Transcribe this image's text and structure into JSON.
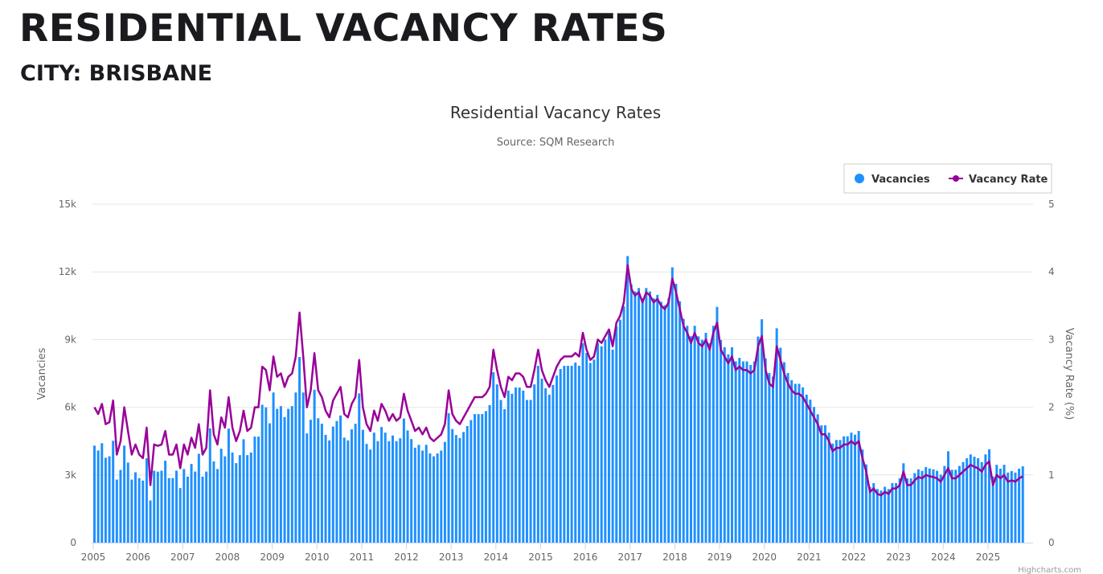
{
  "page": {
    "title": "RESIDENTIAL VACANCY RATES",
    "subtitle": "CITY: BRISBANE"
  },
  "credits": "Highcharts.com",
  "chart_data": {
    "type": "bar+line",
    "title": "Residential Vacancy Rates",
    "subtitle": "Source: SQM Research",
    "x_start": "2005-01",
    "x_interval": "monthly",
    "x_ticks": [
      "2005",
      "2006",
      "2007",
      "2008",
      "2009",
      "2010",
      "2011",
      "2012",
      "2013",
      "2014",
      "2015",
      "2016",
      "2017",
      "2018",
      "2019",
      "2020",
      "2021",
      "2022",
      "2023",
      "2024",
      "2025"
    ],
    "y_left": {
      "label": "Vacancies",
      "range": [
        0,
        15000
      ],
      "ticks": [
        "0",
        "3k",
        "6k",
        "9k",
        "12k",
        "15k"
      ]
    },
    "y_right": {
      "label": "Vacancy Rate (%)",
      "range": [
        0,
        5
      ],
      "ticks": [
        "0",
        "1",
        "2",
        "3",
        "4",
        "5"
      ]
    },
    "grid": true,
    "legend_position": "top-right",
    "colors": {
      "vacancies": "#1e90ff",
      "vacancy_rate": "#990099"
    },
    "series": [
      {
        "name": "Vacancies",
        "type": "column",
        "axis": "left",
        "values": [
          4300,
          4085,
          4408,
          3763,
          3827,
          4515,
          2795,
          3225,
          4300,
          3548,
          2795,
          3118,
          2860,
          2750,
          3740,
          1870,
          3190,
          3146,
          3190,
          3630,
          2860,
          2860,
          3190,
          2420,
          3263,
          2925,
          3488,
          3150,
          3938,
          2925,
          3150,
          5063,
          3600,
          3263,
          4163,
          3825,
          5053,
          3995,
          3525,
          3878,
          4583,
          3878,
          3995,
          4700,
          4700,
          6110,
          5993,
          5288,
          6655,
          5929,
          6050,
          5566,
          5929,
          6050,
          6655,
          8228,
          6655,
          4840,
          5445,
          6776,
          5513,
          5268,
          4778,
          4533,
          5145,
          5390,
          5635,
          4655,
          4533,
          5023,
          5268,
          6615,
          5000,
          4375,
          4125,
          4875,
          4500,
          5125,
          4875,
          4500,
          4750,
          4500,
          4625,
          5500,
          4973,
          4590,
          4208,
          4335,
          4080,
          4335,
          3953,
          3825,
          3953,
          4080,
          4463,
          5738,
          5035,
          4770,
          4638,
          4903,
          5168,
          5433,
          5698,
          5698,
          5698,
          5830,
          6095,
          7553,
          7013,
          6325,
          5913,
          6738,
          6600,
          6875,
          6875,
          6738,
          6325,
          6325,
          7013,
          7838,
          7268,
          6840,
          6555,
          6983,
          7410,
          7695,
          7838,
          7838,
          7838,
          7980,
          7838,
          8835,
          8408,
          7965,
          8113,
          8850,
          8703,
          8998,
          9293,
          8555,
          9588,
          9883,
          10473,
          12700,
          11438,
          11133,
          11285,
          10828,
          11285,
          11133,
          10828,
          10980,
          10675,
          10523,
          10828,
          12200,
          11470,
          10695,
          9920,
          9610,
          9145,
          9610,
          9145,
          8990,
          9300,
          8835,
          9610,
          10450,
          8978,
          8663,
          8348,
          8663,
          8033,
          8190,
          8033,
          8033,
          7875,
          8033,
          9135,
          9900,
          8160,
          7520,
          7360,
          9500,
          8640,
          8000,
          7520,
          7200,
          7040,
          7040,
          6880,
          6560,
          6338,
          6013,
          5688,
          5200,
          5200,
          4875,
          4388,
          4550,
          4550,
          4713,
          4713,
          4875,
          4785,
          4950,
          4125,
          3465,
          2475,
          2640,
          2376,
          2310,
          2475,
          2376,
          2640,
          2640,
          2848,
          3518,
          2848,
          2848,
          3082,
          3250,
          3183,
          3350,
          3283,
          3250,
          3183,
          3015,
          3400,
          4050,
          3230,
          3230,
          3400,
          3570,
          3740,
          3910,
          3808,
          3740,
          3570,
          3910,
          4140,
          2933,
          3450,
          3278,
          3450,
          3105,
          3174,
          3105,
          3278,
          3381
        ]
      },
      {
        "name": "Vacancy Rate",
        "type": "line",
        "axis": "right",
        "values": [
          2.0,
          1.9,
          2.05,
          1.75,
          1.78,
          2.1,
          1.3,
          1.5,
          2.0,
          1.65,
          1.3,
          1.45,
          1.3,
          1.25,
          1.7,
          0.85,
          1.45,
          1.43,
          1.45,
          1.65,
          1.3,
          1.3,
          1.45,
          1.1,
          1.45,
          1.3,
          1.55,
          1.4,
          1.75,
          1.3,
          1.4,
          2.25,
          1.6,
          1.45,
          1.85,
          1.7,
          2.15,
          1.7,
          1.5,
          1.65,
          1.95,
          1.65,
          1.7,
          2.0,
          2.0,
          2.6,
          2.55,
          2.25,
          2.75,
          2.45,
          2.5,
          2.3,
          2.45,
          2.5,
          2.75,
          3.4,
          2.75,
          2.0,
          2.25,
          2.8,
          2.25,
          2.15,
          1.95,
          1.85,
          2.1,
          2.2,
          2.3,
          1.9,
          1.85,
          2.05,
          2.15,
          2.7,
          2.0,
          1.75,
          1.65,
          1.95,
          1.8,
          2.05,
          1.95,
          1.8,
          1.9,
          1.8,
          1.85,
          2.2,
          1.95,
          1.8,
          1.65,
          1.7,
          1.6,
          1.7,
          1.55,
          1.5,
          1.55,
          1.6,
          1.75,
          2.25,
          1.9,
          1.8,
          1.75,
          1.85,
          1.95,
          2.05,
          2.15,
          2.15,
          2.15,
          2.2,
          2.3,
          2.85,
          2.55,
          2.3,
          2.15,
          2.45,
          2.4,
          2.5,
          2.5,
          2.45,
          2.3,
          2.3,
          2.55,
          2.85,
          2.55,
          2.4,
          2.3,
          2.45,
          2.6,
          2.7,
          2.75,
          2.75,
          2.75,
          2.8,
          2.75,
          3.1,
          2.85,
          2.7,
          2.75,
          3.0,
          2.95,
          3.05,
          3.15,
          2.9,
          3.25,
          3.35,
          3.55,
          4.1,
          3.75,
          3.65,
          3.7,
          3.55,
          3.7,
          3.65,
          3.55,
          3.6,
          3.5,
          3.45,
          3.55,
          3.9,
          3.7,
          3.45,
          3.2,
          3.1,
          2.95,
          3.1,
          2.95,
          2.9,
          3.0,
          2.85,
          3.1,
          3.25,
          2.85,
          2.75,
          2.65,
          2.75,
          2.55,
          2.6,
          2.55,
          2.55,
          2.5,
          2.55,
          2.9,
          3.05,
          2.55,
          2.35,
          2.3,
          2.9,
          2.7,
          2.5,
          2.35,
          2.25,
          2.2,
          2.2,
          2.15,
          2.05,
          1.95,
          1.85,
          1.75,
          1.6,
          1.6,
          1.5,
          1.35,
          1.4,
          1.4,
          1.45,
          1.45,
          1.5,
          1.45,
          1.5,
          1.25,
          1.05,
          0.75,
          0.8,
          0.72,
          0.7,
          0.75,
          0.72,
          0.8,
          0.8,
          0.85,
          1.05,
          0.85,
          0.85,
          0.92,
          0.97,
          0.95,
          1.0,
          0.98,
          0.97,
          0.95,
          0.9,
          1.0,
          1.1,
          0.95,
          0.95,
          1.0,
          1.05,
          1.1,
          1.15,
          1.12,
          1.1,
          1.05,
          1.15,
          1.2,
          0.85,
          1.0,
          0.95,
          1.0,
          0.9,
          0.92,
          0.9,
          0.95,
          0.98
        ]
      }
    ]
  }
}
